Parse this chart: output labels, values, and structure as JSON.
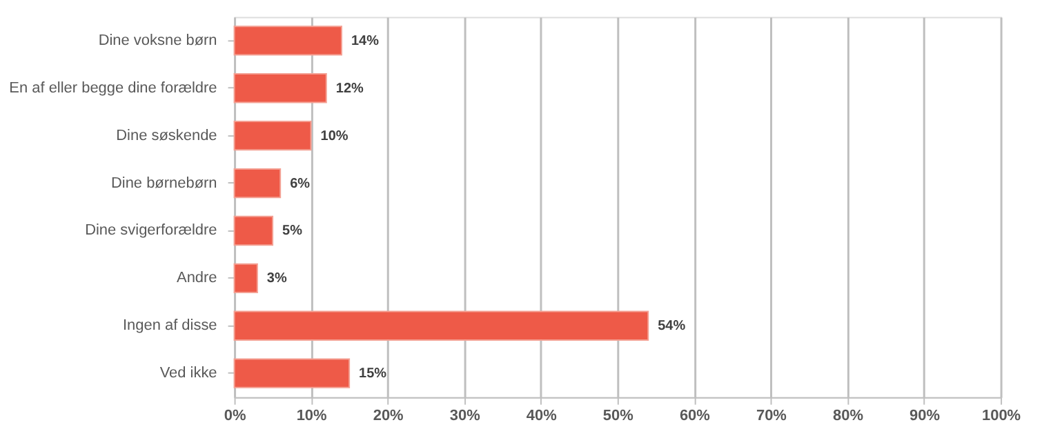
{
  "chart_data": {
    "type": "bar",
    "orientation": "horizontal",
    "categories": [
      "Dine voksne børn",
      "En af eller begge dine forældre",
      "Dine søskende",
      "Dine børnebørn",
      "Dine svigerforældre",
      "Andre",
      "Ingen af disse",
      "Ved ikke"
    ],
    "values": [
      14,
      12,
      10,
      6,
      5,
      3,
      54,
      15
    ],
    "value_labels": [
      "14%",
      "12%",
      "10%",
      "6%",
      "5%",
      "3%",
      "54%",
      "15%"
    ],
    "color": "#ee5a48",
    "xlim": [
      0,
      100
    ],
    "xticks": [
      {
        "value": 0,
        "label": "0%"
      },
      {
        "value": 10,
        "label": "10%"
      },
      {
        "value": 20,
        "label": "20%"
      },
      {
        "value": 30,
        "label": "30%"
      },
      {
        "value": 40,
        "label": "40%"
      },
      {
        "value": 50,
        "label": "50%"
      },
      {
        "value": 60,
        "label": "60%"
      },
      {
        "value": 70,
        "label": "70%"
      },
      {
        "value": 80,
        "label": "80%"
      },
      {
        "value": 90,
        "label": "90%"
      },
      {
        "value": 100,
        "label": "100%"
      }
    ],
    "grid": "x"
  }
}
